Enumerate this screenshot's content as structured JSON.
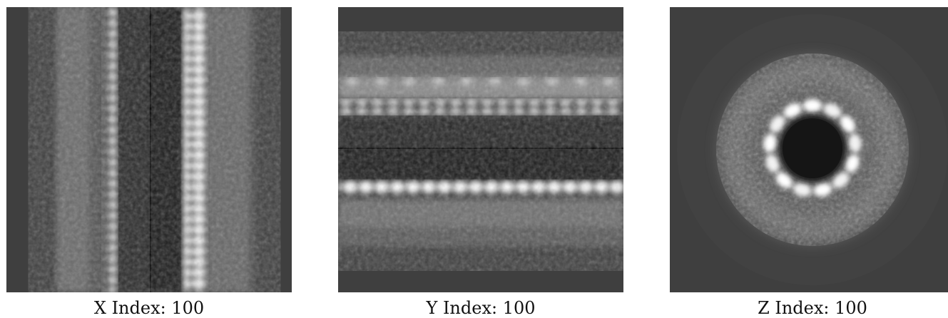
{
  "background_color": "#3f3f3f",
  "panels": [
    {
      "caption": "X Index: 100",
      "view": "side-view-vertical"
    },
    {
      "caption": "Y Index: 100",
      "view": "side-view-horizontal"
    },
    {
      "caption": "Z Index: 100",
      "view": "cross-section-ring"
    }
  ]
}
